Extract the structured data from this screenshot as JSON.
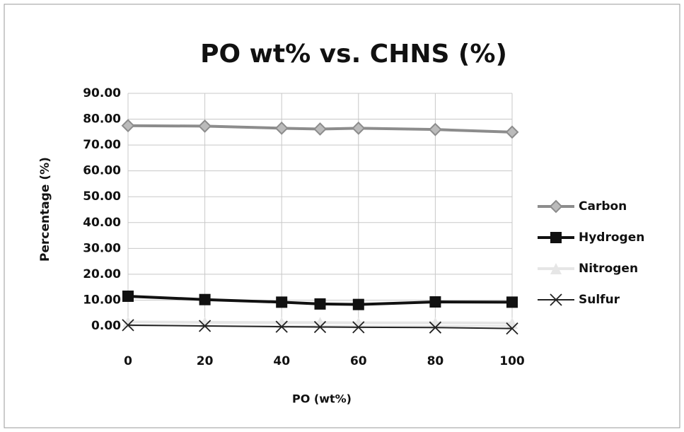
{
  "chart_data": {
    "type": "line",
    "title": "PO wt% vs. CHNS (%)",
    "x_label": "PO (wt%)",
    "y_label": "Percentage (%)",
    "x": [
      0,
      20,
      40,
      50,
      60,
      80,
      100
    ],
    "series": [
      {
        "name": "Carbon",
        "color": "#8c8c8c",
        "marker": "diamond",
        "values": [
          77.5,
          77.3,
          76.5,
          76.2,
          76.5,
          76.0,
          75.0
        ]
      },
      {
        "name": "Hydrogen",
        "color": "#111111",
        "marker": "square",
        "values": [
          11.5,
          10.2,
          9.2,
          8.5,
          8.3,
          9.3,
          9.2
        ]
      },
      {
        "name": "Nitrogen",
        "color": "#e6e6e6",
        "marker": "triangle",
        "values": [
          1.5,
          1.4,
          1.3,
          1.3,
          1.2,
          1.2,
          1.1
        ]
      },
      {
        "name": "Sulfur",
        "color": "#222222",
        "marker": "x",
        "values": [
          0.3,
          0.0,
          -0.3,
          -0.4,
          -0.5,
          -0.6,
          -1.0
        ]
      }
    ],
    "xlim": [
      0,
      100
    ],
    "xticks": [
      0,
      20,
      40,
      60,
      80,
      100
    ],
    "ylim": [
      0,
      90
    ],
    "yticks": [
      {
        "value": 0,
        "label": "0.00"
      },
      {
        "value": 10,
        "label": "10.00"
      },
      {
        "value": 20,
        "label": "20.00"
      },
      {
        "value": 30,
        "label": "30.00"
      },
      {
        "value": 40,
        "label": "40.00"
      },
      {
        "value": 50,
        "label": "50.00"
      },
      {
        "value": 60,
        "label": "60.00"
      },
      {
        "value": 70,
        "label": "70.00"
      },
      {
        "value": 80,
        "label": "80.00"
      },
      {
        "value": 90,
        "label": "90.00"
      }
    ],
    "grid": true,
    "legend": "right"
  }
}
